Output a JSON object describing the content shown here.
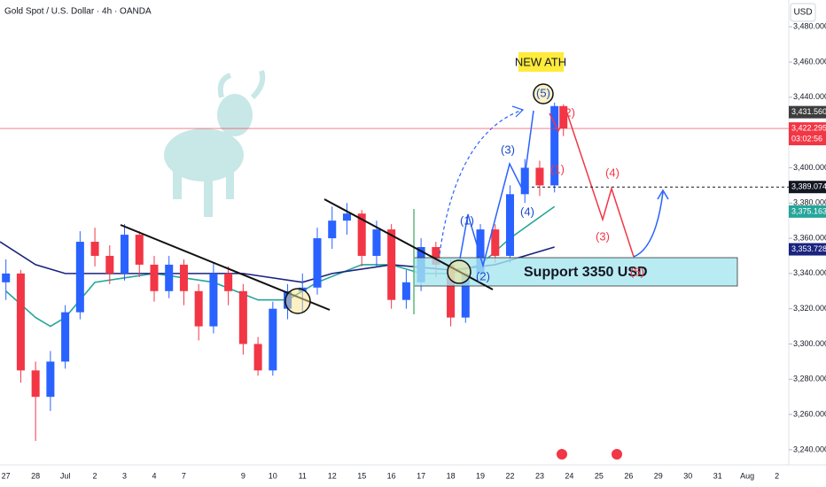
{
  "chart_data": {
    "type": "candlestick",
    "title": "Gold Spot / U.S. Dollar · 4h · OANDA",
    "currency": "USD",
    "categories": [
      "27",
      "28",
      "Jul",
      "2",
      "3",
      "4",
      "7",
      null,
      "9",
      "10",
      "11",
      "12",
      "15",
      "16",
      "17",
      "18",
      "19",
      "22",
      "23",
      "24",
      "25",
      "26",
      "29",
      "30",
      "31",
      "Aug",
      "2"
    ],
    "xlim": [
      -0.2,
      26.4
    ],
    "ylim": [
      3231.4,
      3495.2
    ],
    "yticks": [
      {
        "value": 3480,
        "label": "3,480.000"
      },
      {
        "value": 3460,
        "label": "3,460.000"
      },
      {
        "value": 3440,
        "label": "3,440.000"
      },
      {
        "value": 3420,
        "label": "3,420.000"
      },
      {
        "value": 3400,
        "label": "3,400.000"
      },
      {
        "value": 3380,
        "label": "3,380.000"
      },
      {
        "value": 3360,
        "label": "3,360.000"
      },
      {
        "value": 3340,
        "label": "3,340.000"
      },
      {
        "value": 3320,
        "label": "3,320.000"
      },
      {
        "value": 3300,
        "label": "3,300.000"
      },
      {
        "value": 3280,
        "label": "3,280.000"
      },
      {
        "value": 3260,
        "label": "3,260.000"
      },
      {
        "value": 3240,
        "label": "3,240.000"
      }
    ],
    "up_color": "#2962ff",
    "down_color": "#f23645",
    "x": [
      0,
      0.5,
      1,
      1.5,
      2,
      2.5,
      3,
      3.5,
      4,
      4.5,
      5,
      5.5,
      6,
      6.5,
      7,
      7.5,
      8,
      8.5,
      9,
      9.5,
      10,
      10.5,
      11,
      11.5,
      12,
      12.5,
      13,
      13.5,
      14,
      14.5,
      15,
      15.5,
      16,
      16.5,
      17,
      17.5,
      18,
      18.5,
      18.8
    ],
    "open": [
      3335,
      3340,
      3285,
      3270,
      3290,
      3318,
      3358,
      3350,
      3340,
      3362,
      3345,
      3330,
      3345,
      3330,
      3310,
      3340,
      3330,
      3300,
      3285,
      3320,
      3330,
      3332,
      3360,
      3370,
      3374,
      3350,
      3365,
      3325,
      3335,
      3355,
      3345,
      3315,
      3340,
      3365,
      3350,
      3385,
      3400,
      3390,
      3435
    ],
    "high": [
      3348,
      3342,
      3290,
      3296,
      3322,
      3364,
      3366,
      3356,
      3368,
      3364,
      3350,
      3350,
      3348,
      3334,
      3346,
      3344,
      3334,
      3304,
      3324,
      3334,
      3340,
      3366,
      3378,
      3380,
      3376,
      3370,
      3368,
      3342,
      3360,
      3358,
      3348,
      3344,
      3368,
      3368,
      3390,
      3405,
      3404,
      3437,
      3436
    ],
    "low": [
      3325,
      3278,
      3245,
      3262,
      3286,
      3314,
      3344,
      3334,
      3336,
      3338,
      3324,
      3326,
      3322,
      3302,
      3306,
      3322,
      3294,
      3282,
      3282,
      3314,
      3318,
      3328,
      3354,
      3362,
      3344,
      3344,
      3320,
      3320,
      3330,
      3338,
      3310,
      3312,
      3336,
      3346,
      3346,
      3380,
      3384,
      3386,
      3418
    ],
    "close": [
      3340,
      3285,
      3270,
      3290,
      3318,
      3358,
      3350,
      3340,
      3362,
      3345,
      3330,
      3345,
      3330,
      3310,
      3340,
      3330,
      3300,
      3285,
      3320,
      3330,
      3332,
      3360,
      3370,
      3374,
      3350,
      3365,
      3325,
      3335,
      3355,
      3345,
      3315,
      3340,
      3365,
      3350,
      3385,
      3400,
      3390,
      3435,
      3422.295
    ],
    "moving_averages": [
      {
        "color": "#26a69a",
        "x": [
          0,
          1,
          1.5,
          2,
          3,
          5,
          7,
          8.5,
          9.5,
          10.5,
          12,
          13,
          14,
          15,
          16,
          17,
          18.5
        ],
        "values": [
          3330,
          3315,
          3310,
          3315,
          3335,
          3340,
          3335,
          3325,
          3325,
          3335,
          3345,
          3345,
          3340,
          3340,
          3345,
          3360,
          3378
        ]
      },
      {
        "color": "#1a237e",
        "x": [
          -0.2,
          1,
          2,
          4,
          8,
          10,
          11,
          13,
          15,
          16.5,
          18.5
        ],
        "values": [
          3358,
          3345,
          3340,
          3340,
          3340,
          3335,
          3340,
          3345,
          3342,
          3345,
          3355
        ]
      }
    ],
    "price_tags": [
      {
        "value": 3431.56,
        "label": "3,431.560",
        "color": "#3d3d3d"
      },
      {
        "value": 3422.295,
        "label": "3,422.295",
        "sublabel": "03:02:56",
        "color": "#f23645"
      },
      {
        "value": 3389.074,
        "label": "3,389.074",
        "color": "#131722"
      },
      {
        "value": 3375.163,
        "label": "3,375.163",
        "color": "#26a69a"
      },
      {
        "value": 3353.728,
        "label": "3,353.728",
        "color": "#1a237e"
      }
    ],
    "annotations": {
      "new_ath": "NEW ATH",
      "support": "Support 3350 USD",
      "blue_waves": [
        "(1)",
        "(2)",
        "(3)",
        "(4)",
        "(5)"
      ],
      "red_waves": [
        "(1)",
        "(2)",
        "(3)",
        "(4)",
        "(5)"
      ]
    }
  }
}
